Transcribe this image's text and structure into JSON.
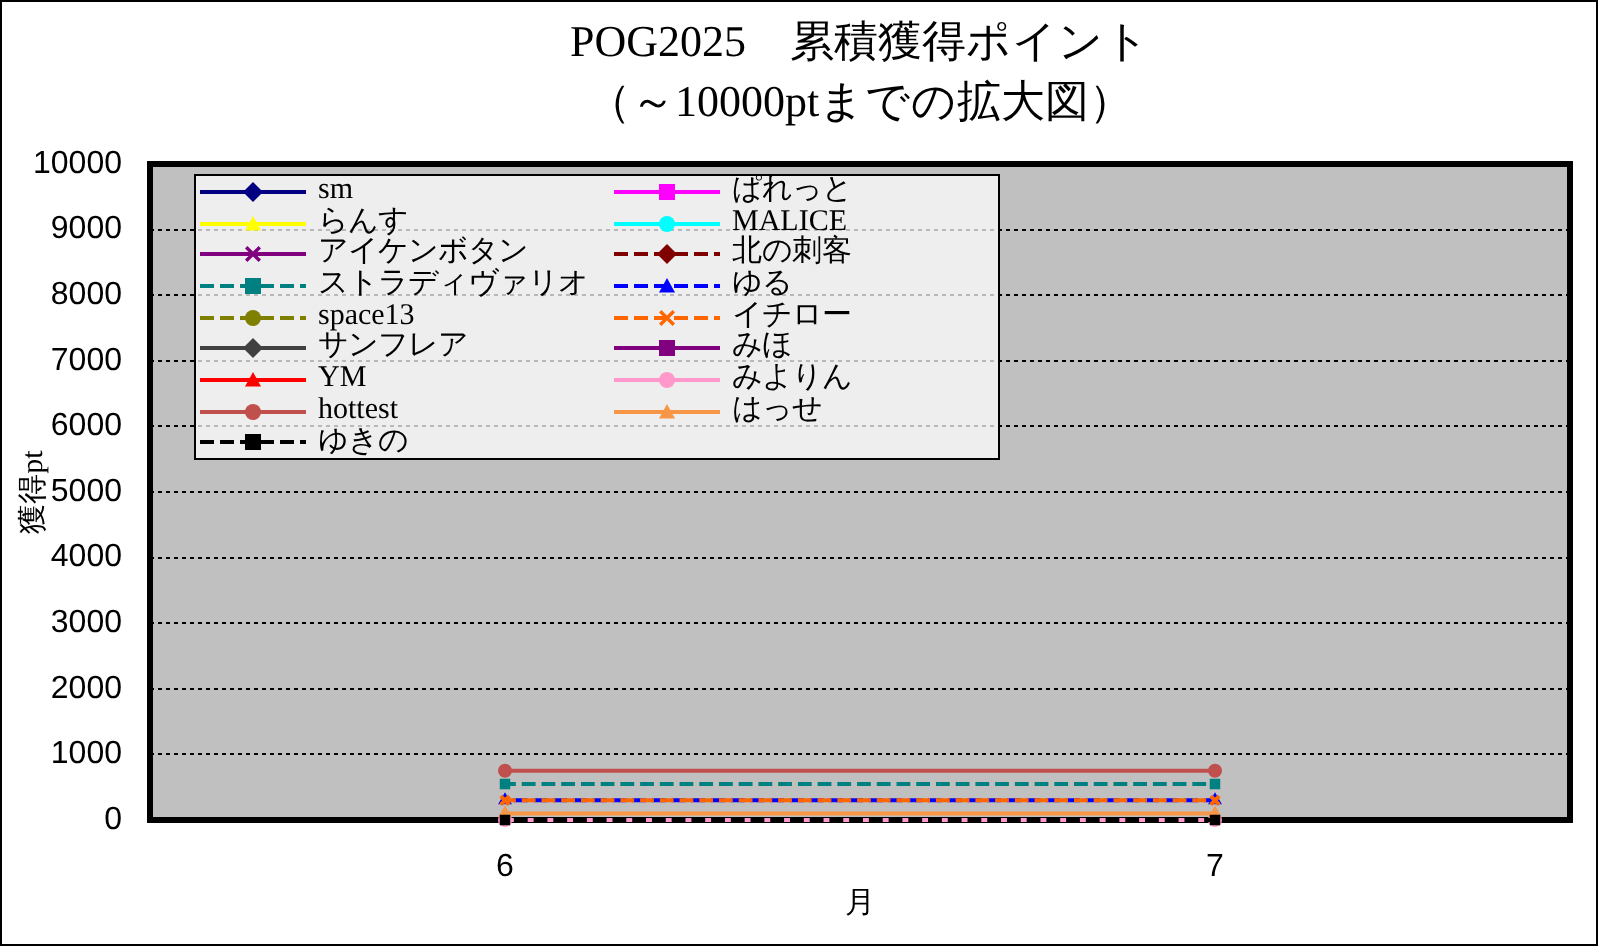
{
  "chart_data": {
    "type": "line",
    "title": "POG2025　累積獲得ポイント",
    "subtitle": "（～10000ptまでの拡大図）",
    "xlabel": "月",
    "ylabel": "獲得pt",
    "x": [
      6,
      7
    ],
    "xlim": [
      5.5,
      7.5
    ],
    "xticks": [
      6,
      7
    ],
    "ylim": [
      0,
      10000
    ],
    "yticks": [
      0,
      1000,
      2000,
      3000,
      4000,
      5000,
      6000,
      7000,
      8000,
      9000,
      10000
    ],
    "grid": "y",
    "legend": "top left",
    "series": [
      {
        "name": "sm",
        "color": "#000080",
        "marker": "diamond",
        "line_style": "solid",
        "values": [
          null,
          null
        ]
      },
      {
        "name": "ぱれっと",
        "color": "#ff00ff",
        "marker": "square",
        "line_style": "solid",
        "values": [
          null,
          null
        ]
      },
      {
        "name": "らんす",
        "color": "#ffff00",
        "marker": "triangle",
        "line_style": "solid",
        "values": [
          null,
          null
        ]
      },
      {
        "name": "MALICE",
        "color": "#00ffff",
        "marker": "circle",
        "line_style": "solid",
        "values": [
          null,
          null
        ]
      },
      {
        "name": "アイケンボタン",
        "color": "#800080",
        "marker": "cross",
        "line_style": "solid",
        "values": [
          null,
          null
        ]
      },
      {
        "name": "北の刺客",
        "color": "#800000",
        "marker": "diamond",
        "line_style": "dashed",
        "values": [
          null,
          null
        ]
      },
      {
        "name": "ストラディヴァリオ",
        "color": "#008080",
        "marker": "square",
        "line_style": "dashed",
        "values": [
          550,
          550
        ]
      },
      {
        "name": "ゆる",
        "color": "#0000ff",
        "marker": "triangle",
        "line_style": "dashed",
        "values": [
          300,
          300
        ]
      },
      {
        "name": "space13",
        "color": "#808000",
        "marker": "circle",
        "line_style": "dashed",
        "values": [
          null,
          null
        ]
      },
      {
        "name": "イチロー",
        "color": "#ff6600",
        "marker": "cross",
        "line_style": "dashed",
        "values": [
          300,
          300
        ]
      },
      {
        "name": "サンフレア",
        "color": "#404040",
        "marker": "diamond",
        "line_style": "solid",
        "values": [
          null,
          null
        ]
      },
      {
        "name": "みほ",
        "color": "#800080",
        "marker": "square",
        "line_style": "solid",
        "values": [
          null,
          null
        ]
      },
      {
        "name": "YM",
        "color": "#ff0000",
        "marker": "triangle",
        "line_style": "solid",
        "values": [
          null,
          null
        ]
      },
      {
        "name": "みよりん",
        "color": "#ff99cc",
        "marker": "circle",
        "line_style": "solid",
        "values": [
          0,
          0
        ]
      },
      {
        "name": "hottest",
        "color": "#c0504d",
        "marker": "circle",
        "line_style": "solid",
        "values": [
          750,
          750
        ]
      },
      {
        "name": "はっせ",
        "color": "#f79646",
        "marker": "triangle",
        "line_style": "solid",
        "values": [
          100,
          100
        ]
      },
      {
        "name": "ゆきの",
        "color": "#000000",
        "marker": "square",
        "line_style": "dashed",
        "values": [
          0,
          0
        ]
      }
    ]
  }
}
